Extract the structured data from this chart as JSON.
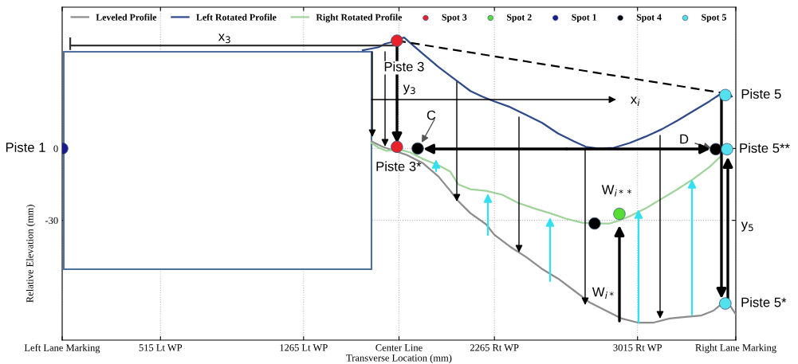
{
  "chart_data": {
    "type": "line",
    "xlabel": "Transverse Location (mm)",
    "ylabel": "Relative Elevation (mm)",
    "xlim": [
      0,
      3530
    ],
    "ylim": [
      -80,
      59
    ],
    "xticks": [
      {
        "value": 0,
        "label": "Left Lane Marking"
      },
      {
        "value": 515,
        "label": "515 Lt WP"
      },
      {
        "value": 1265,
        "label": "1265 Lt WP"
      },
      {
        "value": 1765,
        "label": "Center Line"
      },
      {
        "value": 2265,
        "label": "2265 Rt WP"
      },
      {
        "value": 3015,
        "label": "3015 Rt WP"
      },
      {
        "value": 3530,
        "label": "Right Lane Marking"
      }
    ],
    "yticks": [
      -30,
      0
    ],
    "grid": true,
    "legend": "top",
    "series": [
      {
        "name": "Leveled Profile",
        "color": "#8c8c8c",
        "marker": "none",
        "line_style": "solid",
        "x": [
          1621,
          1679,
          1742,
          1805,
          1888,
          1972,
          2034,
          2076,
          2139,
          2222,
          2264,
          2347,
          2431,
          2515,
          2598,
          2682,
          2765,
          2849,
          2932,
          3016,
          3099,
          3183,
          3266,
          3350,
          3413,
          3454,
          3484,
          3530
        ],
        "values": [
          3,
          0.7,
          -1,
          -2.7,
          -6,
          -11.7,
          -17.7,
          -22,
          -27,
          -31.7,
          -36,
          -41,
          -45.3,
          -50.3,
          -54.3,
          -59.3,
          -64.3,
          -67.7,
          -71,
          -72.7,
          -72.7,
          -71,
          -70.3,
          -69.7,
          -67.7,
          -65,
          -63.7,
          -69.3
        ]
      },
      {
        "name": "Left Rotated Profile",
        "color": "#2e4a8a",
        "marker": "none",
        "line_style": "solid",
        "x": [
          1575,
          1621,
          1658,
          1692,
          1721,
          1763,
          1792,
          1825,
          1888,
          1972,
          2055,
          2139,
          2201,
          2264,
          2347,
          2431,
          2515,
          2598,
          2682,
          2744,
          2807,
          2891,
          2974,
          3058,
          3141,
          3225,
          3308,
          3392,
          3454,
          3484,
          3509
        ],
        "values": [
          41,
          41.7,
          42.3,
          43.7,
          44.3,
          45.7,
          46.3,
          44,
          39.7,
          34,
          29,
          24,
          21.7,
          19.7,
          17.3,
          14,
          10.7,
          6.3,
          3,
          0.7,
          0,
          0.3,
          2.3,
          5,
          8,
          11.7,
          15.7,
          19.7,
          23,
          24,
          21.7
        ]
      },
      {
        "name": "Right Rotated Profile",
        "color": "#9fd39a",
        "marker": "none",
        "line_style": "solid",
        "x": [
          1621,
          1658,
          1700,
          1763,
          1825,
          1888,
          1972,
          2034,
          2076,
          2139,
          2222,
          2306,
          2389,
          2473,
          2556,
          2640,
          2724,
          2807,
          2870,
          2912,
          2974,
          3058,
          3141,
          3225,
          3308,
          3392,
          3454
        ],
        "values": [
          2.3,
          0.3,
          -1,
          -0.3,
          -1.7,
          -4.3,
          -7,
          -9.7,
          -15,
          -17,
          -17.7,
          -19.3,
          -22.7,
          -25,
          -27,
          -29.3,
          -31,
          -31.3,
          -31.3,
          -30.3,
          -28.3,
          -25,
          -21,
          -17,
          -12.7,
          -7.7,
          -3
        ]
      },
      {
        "color": "#000000",
        "marker": "none",
        "line_style": "dashed",
        "x": [
          1754,
          3475
        ],
        "values": [
          45,
          23
        ]
      },
      {
        "color": "#333333",
        "marker": "none",
        "line_style": "solid",
        "x": [
          42,
          1754
        ],
        "values": [
          43,
          43
        ]
      },
      {
        "color": "#333333",
        "marker": "none",
        "line_style": "solid",
        "x": [
          42,
          42
        ],
        "values": [
          46,
          41.5
        ]
      },
      {
        "name": "Spot 3",
        "type": "scatter",
        "color": "#e8202a",
        "marker": "circle",
        "x": [
          1754,
          1754
        ],
        "values": [
          45,
          0.7
        ]
      },
      {
        "name": "Spot 2",
        "type": "scatter",
        "color": "#55dd33",
        "marker": "circle",
        "x": [
          2920
        ],
        "values": [
          -27.3
        ]
      },
      {
        "name": "Spot 1",
        "type": "scatter",
        "color": "#1a1a8c",
        "marker": "circle",
        "x": [
          0
        ],
        "values": [
          0
        ]
      },
      {
        "name": "Spot 4",
        "type": "scatter",
        "color": "#000000",
        "marker": "circle",
        "x": [
          1863,
          3425,
          2790
        ],
        "values": [
          0,
          -0.3,
          -31.3
        ]
      },
      {
        "name": "Spot 5",
        "type": "scatter",
        "color": "#55e0ee",
        "marker": "circle",
        "x": [
          3475,
          3484,
          3475
        ],
        "values": [
          22.3,
          -0.3,
          -64.7
        ]
      }
    ],
    "annotations": [
      {
        "text": "Piste 1",
        "x": 0,
        "y": 0
      },
      {
        "text": "Piste 3",
        "x": 1754,
        "y": 45
      },
      {
        "text": "Piste 3*",
        "x": 1754,
        "y": 0.7
      },
      {
        "text": "Piste 5",
        "x": 3475,
        "y": 22.3
      },
      {
        "text": "Piste 5**",
        "x": 3484,
        "y": -0.3
      },
      {
        "text": "Piste 5*",
        "x": 3475,
        "y": -64.7
      },
      {
        "text": "W$_{i**}$",
        "x": 2920,
        "y": -27.3
      },
      {
        "text": "W$_{i*}$",
        "x": 2932,
        "y": -71
      },
      "C",
      "D",
      "x$_{3}$",
      "y$_{3}$",
      "x$_{i}$",
      "y$_{5}$"
    ]
  }
}
